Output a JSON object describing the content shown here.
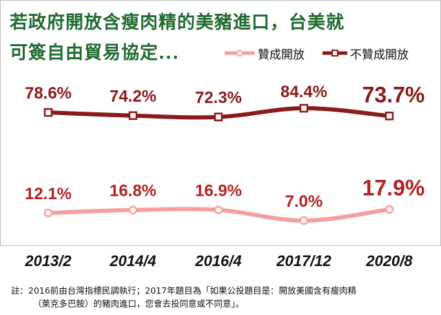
{
  "title_line1": "若政府開放含瘦肉精的美豬進口，台美就",
  "title_line2": "可簽自由貿易協定...",
  "legend": {
    "support": "贊成開放",
    "oppose": "不贊成開放"
  },
  "colors": {
    "title": "#1f6b2f",
    "oppose": "#8b1a1a",
    "support": "#f4a0a0",
    "oppose_label": "#8b1a1a",
    "support_label": "#b22222",
    "axis_label": "#111111"
  },
  "chart_data": {
    "type": "line",
    "categories": [
      "2013/2",
      "2014/4",
      "2016/4",
      "2017/12",
      "2020/8"
    ],
    "series": [
      {
        "name": "不贊成開放",
        "values": [
          78.6,
          74.2,
          72.3,
          84.4,
          73.7
        ],
        "labels": [
          "78.6%",
          "74.2%",
          "72.3%",
          "84.4%",
          "73.7%"
        ]
      },
      {
        "name": "贊成開放",
        "values": [
          12.1,
          16.8,
          16.9,
          7.0,
          17.9
        ],
        "labels": [
          "12.1%",
          "16.8%",
          "16.9%",
          "7.0%",
          "17.9%"
        ]
      }
    ],
    "title": "若政府開放含瘦肉精的美豬進口，台美就可簽自由貿易協定...",
    "xlabel": "",
    "ylabel": "",
    "grid": false,
    "legend_position": "top-right"
  },
  "note_line1": "註：2016前由台灣指標民調執行；2017年題目為「如果公投題目是：開放美國含有瘦肉精",
  "note_line2": "（萊克多巴胺）的豬肉進口，您會去投同意或不同意」。"
}
